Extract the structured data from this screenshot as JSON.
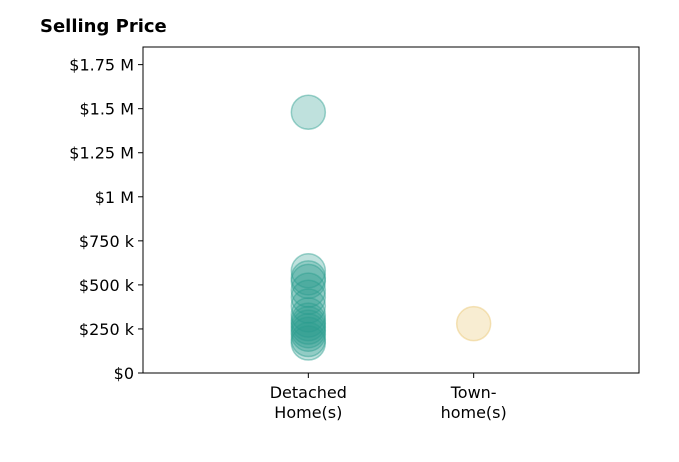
{
  "chart_data": {
    "type": "scatter",
    "title": "Selling Price",
    "xlabel": "",
    "ylabel": "",
    "ylim": [
      0,
      1850000
    ],
    "y_ticks": [
      {
        "value": 0,
        "label": "$0"
      },
      {
        "value": 250000,
        "label": "$250 k"
      },
      {
        "value": 500000,
        "label": "$500 k"
      },
      {
        "value": 750000,
        "label": "$750 k"
      },
      {
        "value": 1000000,
        "label": "$1 M"
      },
      {
        "value": 1250000,
        "label": "$1.25 M"
      },
      {
        "value": 1500000,
        "label": "$1.5 M"
      },
      {
        "value": 1750000,
        "label": "$1.75 M"
      }
    ],
    "categories": [
      {
        "lines": [
          "Detached",
          "Home(s)"
        ],
        "color": "#2a9d8f"
      },
      {
        "lines": [
          "Town-",
          "home(s)"
        ],
        "color": "#e9c46a"
      }
    ],
    "grid": false,
    "series": [
      {
        "category": 0,
        "values": [
          1480000,
          580000,
          540000,
          520000,
          470000,
          430000,
          380000,
          330000,
          300000,
          280000,
          260000,
          240000,
          220000,
          190000,
          170000
        ]
      },
      {
        "category": 1,
        "values": [
          280000
        ]
      }
    ]
  }
}
